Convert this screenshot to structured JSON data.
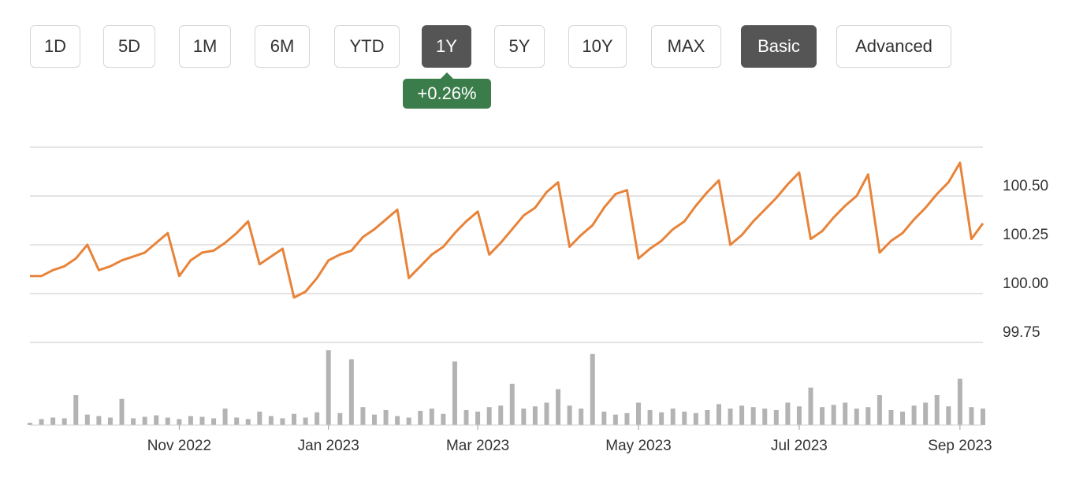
{
  "buttons": [
    {
      "label": "1D",
      "active": false
    },
    {
      "label": "5D",
      "active": false
    },
    {
      "label": "1M",
      "active": false
    },
    {
      "label": "6M",
      "active": false
    },
    {
      "label": "YTD",
      "active": false
    },
    {
      "label": "1Y",
      "active": true
    },
    {
      "label": "5Y",
      "active": false
    },
    {
      "label": "10Y",
      "active": false
    },
    {
      "label": "MAX",
      "active": false
    },
    {
      "label": "Basic",
      "active": true
    },
    {
      "label": "Advanced",
      "active": false
    }
  ],
  "change_badge": "+0.26%",
  "chart_data": {
    "type": "line",
    "color": "#e8833a",
    "volume_color": "#b3b3b3",
    "grid": true,
    "categories": [
      null,
      null,
      null,
      null,
      null,
      null,
      null,
      null,
      null,
      null,
      null,
      null,
      null,
      "Nov 2022",
      null,
      null,
      null,
      null,
      null,
      null,
      null,
      null,
      null,
      null,
      null,
      null,
      "Jan 2023",
      null,
      null,
      null,
      null,
      null,
      null,
      null,
      null,
      null,
      null,
      null,
      null,
      "Mar 2023",
      null,
      null,
      null,
      null,
      null,
      null,
      null,
      null,
      null,
      null,
      null,
      null,
      null,
      "May 2023",
      null,
      null,
      null,
      null,
      null,
      null,
      null,
      null,
      null,
      null,
      null,
      null,
      null,
      "Jul 2023",
      null,
      null,
      null,
      null,
      null,
      null,
      null,
      null,
      null,
      null,
      null,
      null,
      null,
      "Sep 2023",
      null,
      null
    ],
    "values": [
      100.09,
      100.09,
      100.12,
      100.14,
      100.18,
      100.25,
      100.12,
      100.14,
      100.17,
      100.19,
      100.21,
      100.26,
      100.31,
      100.09,
      100.17,
      100.21,
      100.22,
      100.26,
      100.31,
      100.37,
      100.15,
      100.19,
      100.23,
      99.98,
      100.01,
      100.08,
      100.17,
      100.2,
      100.22,
      100.29,
      100.33,
      100.38,
      100.43,
      100.08,
      100.14,
      100.2,
      100.24,
      100.31,
      100.37,
      100.42,
      100.2,
      100.26,
      100.33,
      100.4,
      100.44,
      100.52,
      100.57,
      100.24,
      100.3,
      100.35,
      100.44,
      100.51,
      100.53,
      100.18,
      100.23,
      100.27,
      100.33,
      100.37,
      100.45,
      100.52,
      100.58,
      100.25,
      100.3,
      100.37,
      100.43,
      100.49,
      100.56,
      100.62,
      100.28,
      100.32,
      100.39,
      100.45,
      100.5,
      100.61,
      100.21,
      100.27,
      100.31,
      100.38,
      100.44,
      100.51,
      100.57,
      100.67,
      100.28,
      100.36
    ],
    "volume": [
      3,
      8,
      10,
      9,
      40,
      14,
      12,
      10,
      35,
      9,
      11,
      13,
      10,
      8,
      12,
      11,
      9,
      22,
      10,
      8,
      18,
      12,
      9,
      15,
      10,
      17,
      100,
      16,
      88,
      24,
      14,
      20,
      12,
      10,
      19,
      22,
      15,
      85,
      20,
      18,
      24,
      26,
      55,
      22,
      25,
      30,
      48,
      26,
      22,
      95,
      18,
      14,
      16,
      30,
      20,
      17,
      22,
      18,
      16,
      20,
      28,
      22,
      26,
      24,
      22,
      20,
      30,
      25,
      50,
      24,
      27,
      30,
      22,
      24,
      40,
      20,
      18,
      26,
      30,
      40,
      25,
      62,
      24,
      22
    ],
    "volume_lim": [
      0,
      100
    ],
    "ylim": [
      99.75,
      100.75
    ],
    "yticks": [
      99.75,
      {
        "value": 100,
        "label": "100.00"
      },
      {
        "value": 100.25,
        "label": "100.25"
      },
      {
        "value": 100.5,
        "label": "100.50"
      }
    ]
  }
}
